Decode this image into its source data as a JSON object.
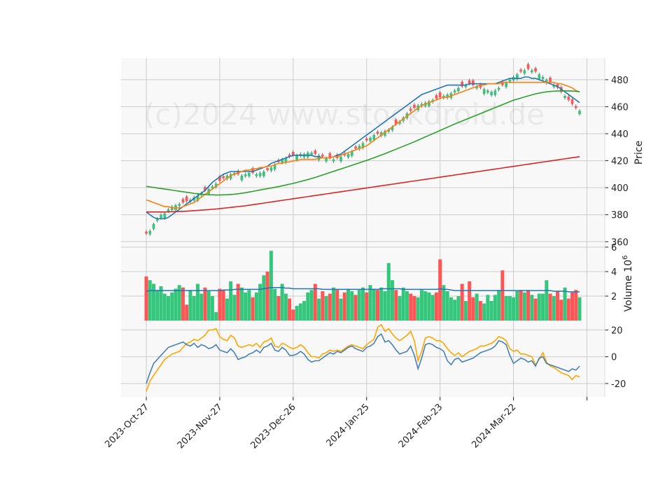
{
  "watermark": "(c)2024 www.stockdroid.de",
  "chart_data": {
    "type": "candlestick",
    "x_tick_labels": [
      "2023-Oct-27",
      "2023-Nov-27",
      "2023-Dec-26",
      "2024-Jan-25",
      "2024-Feb-23",
      "2024-Mar-22"
    ],
    "x_tick_index": [
      0,
      20,
      40,
      60,
      80,
      100
    ],
    "bar_count": 119,
    "price_panel": {
      "ylabel": "Price",
      "yticks": [
        360,
        380,
        400,
        420,
        440,
        460,
        480
      ],
      "ylim": [
        356,
        496
      ],
      "up_color": "#34c77b",
      "down_color": "#ff5555",
      "close": [
        366,
        368,
        373,
        377,
        380,
        381,
        384,
        386,
        387,
        388,
        389,
        390,
        391,
        393,
        394,
        396,
        398,
        399,
        401,
        403,
        405,
        407,
        409,
        410,
        411,
        410,
        409,
        410,
        411,
        411,
        410,
        411,
        412,
        413,
        415,
        417,
        419,
        421,
        422,
        423,
        424,
        424,
        425,
        425,
        426,
        426,
        425,
        424,
        423,
        422,
        422,
        421,
        422,
        423,
        424,
        425,
        427,
        429,
        431,
        433,
        435,
        437,
        439,
        440,
        441,
        442,
        443,
        445,
        447,
        449,
        452,
        455,
        457,
        459,
        461,
        462,
        463,
        464,
        465,
        466,
        467,
        468,
        469,
        470,
        472,
        474,
        475,
        476,
        477,
        476,
        475,
        474,
        473,
        472,
        471,
        472,
        474,
        476,
        478,
        480,
        482,
        484,
        486,
        487,
        488,
        487,
        486,
        484,
        482,
        480,
        478,
        476,
        474,
        471,
        468,
        465,
        462,
        459,
        457
      ],
      "sma_short": [
        382,
        380,
        378,
        377,
        377,
        377,
        378,
        380,
        382,
        384,
        386,
        388,
        390,
        392,
        394,
        396,
        398,
        401,
        404,
        406,
        408,
        410,
        411,
        412,
        412,
        412,
        412,
        412,
        412,
        412,
        413,
        414,
        415,
        416,
        418,
        419,
        420,
        421,
        422,
        423,
        424,
        424,
        424,
        424,
        424,
        424,
        423,
        423,
        422,
        422,
        422,
        423,
        424,
        425,
        427,
        429,
        431,
        433,
        435,
        437,
        439,
        441,
        443,
        445,
        447,
        449,
        451,
        453,
        455,
        457,
        459,
        461,
        463,
        465,
        467,
        469,
        470,
        471,
        472,
        473,
        474,
        475,
        476,
        476,
        476,
        476,
        476,
        476,
        477,
        477,
        477,
        477,
        477,
        477,
        477,
        477,
        478,
        479,
        480,
        481,
        481,
        481,
        481,
        482,
        482,
        481,
        481,
        480,
        479,
        478,
        477,
        476,
        475,
        473,
        471,
        469,
        467,
        465,
        463
      ],
      "sma_mid": [
        391,
        390,
        389,
        388,
        387,
        386,
        386,
        385,
        385,
        385,
        386,
        387,
        388,
        389,
        391,
        393,
        395,
        397,
        399,
        401,
        403,
        405,
        407,
        409,
        410,
        411,
        412,
        413,
        413,
        414,
        414,
        415,
        415,
        416,
        416,
        417,
        418,
        418,
        419,
        419,
        420,
        420,
        421,
        421,
        421,
        421,
        421,
        422,
        422,
        422,
        422,
        423,
        423,
        424,
        425,
        426,
        427,
        428,
        429,
        430,
        431,
        433,
        435,
        437,
        439,
        441,
        443,
        445,
        447,
        449,
        451,
        453,
        455,
        457,
        459,
        461,
        462,
        463,
        464,
        465,
        466,
        467,
        467,
        468,
        469,
        470,
        471,
        472,
        473,
        474,
        475,
        476,
        476,
        477,
        477,
        477,
        477,
        478,
        478,
        478,
        478,
        478,
        478,
        478,
        478,
        478,
        478,
        478,
        478,
        478,
        478,
        478,
        477,
        477,
        476,
        475,
        474,
        472,
        471
      ],
      "sma_long": [
        401,
        400.6,
        400.2,
        399.8,
        399.4,
        399,
        398.6,
        398.2,
        397.8,
        397.4,
        397,
        396.6,
        396.2,
        395.8,
        395.5,
        395.2,
        395,
        394.8,
        394.7,
        394.6,
        394.6,
        394.7,
        394.8,
        395,
        395.2,
        395.5,
        395.9,
        396.3,
        396.8,
        397.3,
        397.8,
        398.3,
        398.8,
        399.3,
        399.8,
        400.3,
        400.8,
        401.4,
        402,
        402.6,
        403.2,
        403.9,
        404.6,
        405.3,
        406,
        406.8,
        407.6,
        408.5,
        409.4,
        410.3,
        411.2,
        412.1,
        413,
        413.9,
        414.8,
        415.7,
        416.6,
        417.5,
        418.4,
        419.3,
        420.2,
        421.2,
        422.2,
        423.2,
        424.2,
        425.2,
        426.3,
        427.4,
        428.5,
        429.6,
        430.7,
        431.8,
        432.9,
        434,
        435.2,
        436.4,
        437.6,
        438.8,
        440,
        441.2,
        442.4,
        443.6,
        444.8,
        446,
        447.2,
        448.3,
        449.4,
        450.5,
        451.6,
        452.7,
        453.8,
        454.9,
        456,
        457.1,
        458.2,
        459.3,
        460.4,
        461.5,
        462.6,
        463.7,
        464.8,
        465.6,
        466.4,
        467.2,
        468,
        468.8,
        469.5,
        470.1,
        470.6,
        471,
        471.3,
        471.5,
        471.6,
        471.7,
        471.7,
        471.7,
        471.6,
        471.4,
        471.1
      ],
      "sma_200": [
        382,
        382,
        382,
        382,
        382,
        382,
        382.1,
        382.2,
        382.3,
        382.4,
        382.5,
        382.6,
        382.8,
        383,
        383.2,
        383.4,
        383.6,
        383.8,
        384,
        384.2,
        384.5,
        384.8,
        385.1,
        385.4,
        385.7,
        386,
        386.3,
        386.6,
        387,
        387.4,
        387.8,
        388.2,
        388.6,
        389,
        389.4,
        389.8,
        390.2,
        390.6,
        391,
        391.4,
        391.8,
        392.2,
        392.6,
        393,
        393.4,
        393.8,
        394.2,
        394.6,
        395,
        395.4,
        395.8,
        396.2,
        396.6,
        397,
        397.4,
        397.8,
        398.2,
        398.6,
        399,
        399.4,
        399.8,
        400.2,
        400.6,
        401,
        401.4,
        401.8,
        402.2,
        402.6,
        403,
        403.4,
        403.8,
        404.2,
        404.6,
        405,
        405.4,
        405.8,
        406.2,
        406.6,
        407,
        407.4,
        407.8,
        408.2,
        408.6,
        409,
        409.4,
        409.8,
        410.2,
        410.6,
        411,
        411.4,
        411.8,
        412.2,
        412.6,
        413,
        413.4,
        413.8,
        414.2,
        414.6,
        415,
        415.4,
        415.8,
        416.2,
        416.6,
        417,
        417.4,
        417.8,
        418.2,
        418.6,
        419,
        419.4,
        419.8,
        420.2,
        420.6,
        421,
        421.4,
        421.8,
        422.2,
        422.6,
        423
      ],
      "line_colors": [
        "#1f77b4",
        "#ff7f0e",
        "#2ca02c",
        "#d62728"
      ]
    },
    "volume_panel": {
      "ylabel": "Volume  10^6",
      "yticks": [
        2,
        4,
        6
      ],
      "ylim": [
        0,
        6
      ],
      "values": [
        3.6,
        3.3,
        3.0,
        2.5,
        2.8,
        2.2,
        2.0,
        2.3,
        2.6,
        2.9,
        2.7,
        1.3,
        2.5,
        2.0,
        3.0,
        2.2,
        2.7,
        2.4,
        2.0,
        0.7,
        2.6,
        2.5,
        1.8,
        3.2,
        2.1,
        3.0,
        2.7,
        2.3,
        2.5,
        1.9,
        2.3,
        3.0,
        3.7,
        4.0,
        5.7,
        2.6,
        2.0,
        3.0,
        2.2,
        1.8,
        0.9,
        1.2,
        1.4,
        1.6,
        2.3,
        2.5,
        3.0,
        1.8,
        2.4,
        2.0,
        2.2,
        2.7,
        2.5,
        1.8,
        2.3,
        2.6,
        2.4,
        2.1,
        2.5,
        2.7,
        2.3,
        2.9,
        2.6,
        2.5,
        2.7,
        2.4,
        4.7,
        3.3,
        2.5,
        2.0,
        2.7,
        2.4,
        2.2,
        2.0,
        1.9,
        2.5,
        2.4,
        2.3,
        2.1,
        2.3,
        5.0,
        2.9,
        2.4,
        1.9,
        1.7,
        2.0,
        3.0,
        1.6,
        3.2,
        1.9,
        2.2,
        1.6,
        1.4,
        2.1,
        1.6,
        2.1,
        2.5,
        4.1,
        2.0,
        2.0,
        1.9,
        2.4,
        2.5,
        2.3,
        2.5,
        2.1,
        1.8,
        2.2,
        2.2,
        3.3,
        2.2,
        2.0,
        2.4,
        1.7,
        2.7,
        1.8,
        2.3,
        2.5,
        1.9
      ],
      "direction": [
        0,
        1,
        1,
        1,
        1,
        1,
        1,
        1,
        1,
        1,
        0,
        0,
        1,
        1,
        1,
        1,
        0,
        1,
        1,
        1,
        0,
        0,
        1,
        1,
        1,
        0,
        1,
        1,
        1,
        0,
        1,
        1,
        1,
        0,
        1,
        1,
        0,
        1,
        1,
        0,
        0,
        1,
        1,
        1,
        1,
        1,
        0,
        1,
        0,
        1,
        0,
        1,
        0,
        1,
        0,
        1,
        1,
        0,
        1,
        1,
        0,
        1,
        1,
        0,
        1,
        1,
        1,
        1,
        0,
        1,
        1,
        1,
        0,
        0,
        1,
        1,
        1,
        1,
        1,
        0,
        0,
        1,
        1,
        1,
        1,
        1,
        0,
        1,
        0,
        0,
        1,
        0,
        1,
        1,
        1,
        1,
        1,
        0,
        1,
        1,
        1,
        1,
        0,
        1,
        0,
        1,
        0,
        1,
        1,
        1,
        0,
        1,
        0,
        0,
        1,
        0,
        0,
        0,
        1
      ],
      "avg_line": [
        2.4,
        2.45,
        2.45,
        2.45,
        2.45,
        2.45,
        2.45,
        2.45,
        2.45,
        2.45,
        2.45,
        2.45,
        2.45,
        2.45,
        2.45,
        2.45,
        2.45,
        2.45,
        2.45,
        2.45,
        2.45,
        2.5,
        2.5,
        2.5,
        2.55,
        2.55,
        2.55,
        2.55,
        2.55,
        2.55,
        2.55,
        2.55,
        2.6,
        2.65,
        2.7,
        2.7,
        2.7,
        2.7,
        2.65,
        2.65,
        2.6,
        2.6,
        2.6,
        2.6,
        2.6,
        2.6,
        2.6,
        2.6,
        2.55,
        2.55,
        2.55,
        2.55,
        2.55,
        2.55,
        2.55,
        2.55,
        2.55,
        2.55,
        2.55,
        2.55,
        2.55,
        2.55,
        2.55,
        2.55,
        2.6,
        2.6,
        2.6,
        2.6,
        2.6,
        2.6,
        2.55,
        2.55,
        2.55,
        2.55,
        2.55,
        2.55,
        2.55,
        2.55,
        2.55,
        2.55,
        2.6,
        2.55,
        2.55,
        2.5,
        2.45,
        2.45,
        2.45,
        2.45,
        2.45,
        2.45,
        2.45,
        2.45,
        2.45,
        2.45,
        2.45,
        2.45,
        2.45,
        2.45,
        2.45,
        2.45,
        2.45,
        2.45,
        2.45,
        2.45,
        2.45,
        2.45,
        2.45,
        2.45,
        2.45,
        2.45,
        2.45,
        2.4,
        2.4,
        2.4,
        2.4,
        2.35,
        2.35,
        2.35,
        2.35
      ],
      "avg_color": "#1f77b4"
    },
    "indicator_panel": {
      "yticks": [
        -20,
        0,
        20
      ],
      "ylim": [
        -30,
        27
      ],
      "series": [
        {
          "color": "#ffa500",
          "values": [
            -26,
            -18,
            -14,
            -10,
            -6,
            -2,
            0,
            2,
            3,
            4,
            7,
            10,
            11,
            13,
            12,
            14,
            16,
            20,
            20,
            21,
            15,
            13,
            12,
            16,
            14,
            8,
            7,
            8,
            9,
            8,
            10,
            7,
            11,
            12,
            14,
            8,
            7,
            10,
            9,
            7,
            6,
            7,
            9,
            7,
            3,
            0,
            0,
            -1,
            2,
            3,
            5,
            4,
            5,
            4,
            6,
            8,
            9,
            8,
            7,
            6,
            9,
            11,
            13,
            22,
            24,
            19,
            21,
            17,
            14,
            12,
            14,
            16,
            19,
            12,
            -3,
            4,
            14,
            15,
            14,
            12,
            12,
            10,
            6,
            3,
            1,
            3,
            0,
            2,
            4,
            5,
            6,
            8,
            8,
            9,
            10,
            12,
            15,
            14,
            12,
            6,
            4,
            5,
            2,
            2,
            1,
            0,
            -6,
            -2,
            3,
            -4,
            -7,
            -8,
            -10,
            -12,
            -13,
            -14,
            -17,
            -14,
            -15
          ]
        },
        {
          "color": "#4682b4",
          "values": [
            -20,
            -12,
            -5,
            -2,
            1,
            4,
            7,
            8,
            9,
            10,
            11,
            9,
            8,
            10,
            7,
            9,
            8,
            6,
            7,
            9,
            5,
            4,
            3,
            6,
            3,
            -2,
            -1,
            0,
            2,
            3,
            5,
            3,
            7,
            8,
            10,
            5,
            4,
            7,
            5,
            1,
            1,
            2,
            4,
            2,
            -2,
            -4,
            -3,
            -3,
            -1,
            1,
            3,
            2,
            4,
            3,
            5,
            7,
            8,
            6,
            5,
            4,
            7,
            8,
            10,
            15,
            17,
            11,
            12,
            9,
            5,
            2,
            3,
            4,
            8,
            1,
            -9,
            -1,
            9,
            10,
            9,
            7,
            6,
            4,
            -3,
            -6,
            -2,
            -1,
            -4,
            -3,
            -2,
            -1,
            1,
            3,
            4,
            5,
            6,
            8,
            12,
            11,
            9,
            1,
            -5,
            -3,
            -1,
            -2,
            -4,
            -3,
            -7,
            -1,
            0,
            -5,
            -6,
            -7,
            -8,
            -9,
            -10,
            -11,
            -9,
            -10,
            -7
          ]
        }
      ]
    }
  }
}
